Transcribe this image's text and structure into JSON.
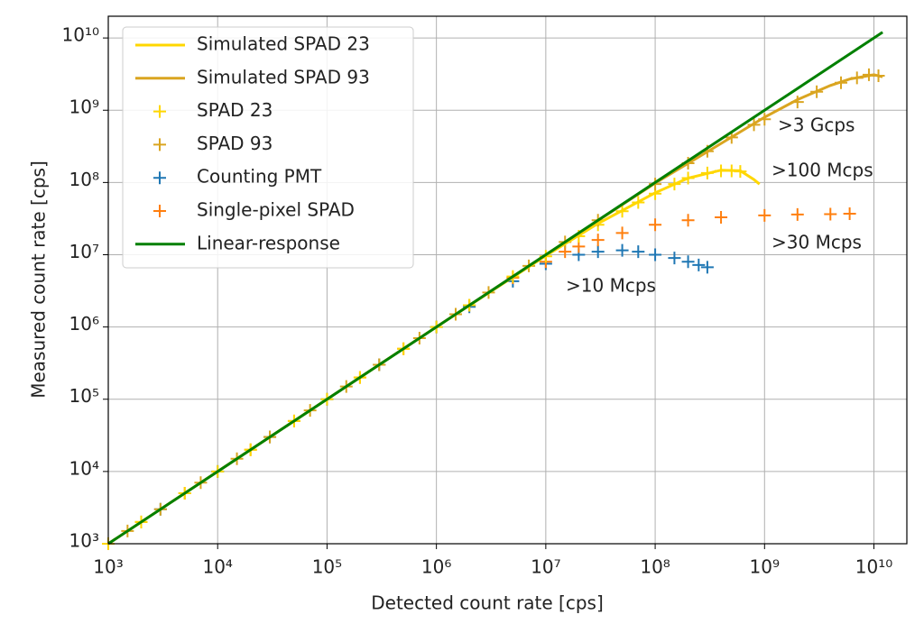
{
  "chart_data": {
    "type": "line",
    "x_label": "Detected count rate [cps]",
    "y_label": "Measured count rate [cps]",
    "log_x": true,
    "log_y": true,
    "grid": true,
    "legend": "upper left",
    "xlim": [
      1000,
      20000000000
    ],
    "ylim": [
      1000,
      20000000000
    ],
    "xticks": [
      {
        "value": 1000,
        "label": "10³"
      },
      {
        "value": 10000,
        "label": "10⁴"
      },
      {
        "value": 100000,
        "label": "10⁵"
      },
      {
        "value": 1000000,
        "label": "10⁶"
      },
      {
        "value": 10000000,
        "label": "10⁷"
      },
      {
        "value": 100000000,
        "label": "10⁸"
      },
      {
        "value": 1000000000,
        "label": "10⁹"
      },
      {
        "value": 10000000000,
        "label": "10¹⁰"
      }
    ],
    "yticks": [
      {
        "value": 1000,
        "label": "10³"
      },
      {
        "value": 10000,
        "label": "10⁴"
      },
      {
        "value": 100000,
        "label": "10⁵"
      },
      {
        "value": 1000000,
        "label": "10⁶"
      },
      {
        "value": 10000000,
        "label": "10⁷"
      },
      {
        "value": 100000000,
        "label": "10⁸"
      },
      {
        "value": 1000000000,
        "label": "10⁹"
      },
      {
        "value": 10000000000,
        "label": "10¹⁰"
      }
    ],
    "series": [
      {
        "name": "Simulated SPAD 23",
        "color": "#ffd700",
        "mode": "line",
        "x": [
          1000,
          10000,
          100000,
          1000000,
          10000000,
          30000000,
          100000000,
          200000000,
          400000000,
          600000000,
          800000000,
          900000000
        ],
        "values": [
          1000,
          10000,
          100000,
          1000000,
          9700000,
          27000000,
          72000000,
          115000000,
          148000000,
          145000000,
          110000000,
          95000000
        ]
      },
      {
        "name": "Simulated SPAD 93",
        "color": "#daa520",
        "mode": "line",
        "x": [
          1000,
          100000,
          10000000,
          100000000,
          1000000000,
          2000000000,
          4000000000,
          6000000000,
          10000000000,
          12000000000
        ],
        "values": [
          1000,
          100000,
          10000000,
          98000000,
          800000000,
          1400000000,
          2200000000,
          2700000000,
          3100000000,
          2900000000
        ]
      },
      {
        "name": "SPAD 23",
        "color": "#ffd700",
        "mode": "marker",
        "x": [
          1000,
          2000,
          5000,
          10000,
          20000,
          50000,
          100000,
          200000,
          500000,
          1000000,
          2000000,
          5000000,
          10000000,
          20000000,
          30000000,
          50000000,
          70000000,
          100000000,
          150000000,
          200000000,
          300000000,
          400000000,
          500000000,
          600000000
        ],
        "values": [
          1000,
          2000,
          5000,
          10000,
          20000,
          50000,
          100000,
          200000,
          500000,
          1000000,
          2000000,
          5000000,
          9500000,
          18000000,
          26000000,
          40000000,
          53000000,
          70000000,
          95000000,
          115000000,
          135000000,
          145000000,
          145000000,
          142000000
        ]
      },
      {
        "name": "SPAD 93",
        "color": "#daa520",
        "mode": "marker",
        "x": [
          1500,
          3000,
          7000,
          15000,
          30000,
          70000,
          150000,
          300000,
          700000,
          1500000,
          3000000,
          7000000,
          15000000,
          30000000,
          100000000,
          200000000,
          300000000,
          500000000,
          800000000,
          1000000000,
          2000000000,
          3000000000,
          5000000000,
          7000000000,
          9000000000,
          11000000000
        ],
        "values": [
          1500,
          3000,
          7000,
          15000,
          30000,
          70000,
          150000,
          300000,
          700000,
          1500000,
          3000000,
          7000000,
          15000000,
          30000000,
          95000000,
          185000000,
          270000000,
          420000000,
          630000000,
          750000000,
          1300000000,
          1800000000,
          2400000000,
          2800000000,
          3100000000,
          3000000000
        ]
      },
      {
        "name": "Counting PMT",
        "color": "#1f77b4",
        "mode": "marker",
        "x": [
          1000,
          3000,
          10000,
          30000,
          100000,
          300000,
          1000000,
          2000000,
          5000000,
          10000000,
          20000000,
          30000000,
          50000000,
          70000000,
          100000000,
          150000000,
          200000000,
          250000000,
          300000000
        ],
        "values": [
          1000,
          3000,
          10000,
          30000,
          100000,
          300000,
          1000000,
          1900000,
          4300000,
          7500000,
          10000000,
          11000000,
          11500000,
          11000000,
          10000000,
          9000000,
          8000000,
          7200000,
          6700000
        ]
      },
      {
        "name": "Single-pixel SPAD",
        "color": "#ff7f0e",
        "mode": "marker",
        "x": [
          2000,
          5000,
          20000,
          50000,
          200000,
          500000,
          2000000,
          5000000,
          10000000,
          15000000,
          20000000,
          30000000,
          50000000,
          100000000,
          200000000,
          400000000,
          1000000000,
          2000000000,
          4000000000,
          6000000000
        ],
        "values": [
          2000,
          5000,
          20000,
          50000,
          200000,
          500000,
          2000000,
          4800000,
          8000000,
          11000000,
          13000000,
          16000000,
          20000000,
          26000000,
          30000000,
          33000000,
          35000000,
          36000000,
          36500000,
          37000000
        ]
      },
      {
        "name": "Linear-response",
        "color": "#008000",
        "mode": "line",
        "x": [
          1000,
          12000000000
        ],
        "values": [
          1000,
          12000000000
        ]
      }
    ],
    "annotations": [
      {
        "text": ">3 Gcps",
        "color": "#daa520"
      },
      {
        "text": ">100 Mcps",
        "color": "#ffd700"
      },
      {
        "text": ">30 Mcps",
        "color": "#ff7f0e"
      },
      {
        "text": ">10 Mcps",
        "color": "#1f77b4"
      }
    ]
  }
}
